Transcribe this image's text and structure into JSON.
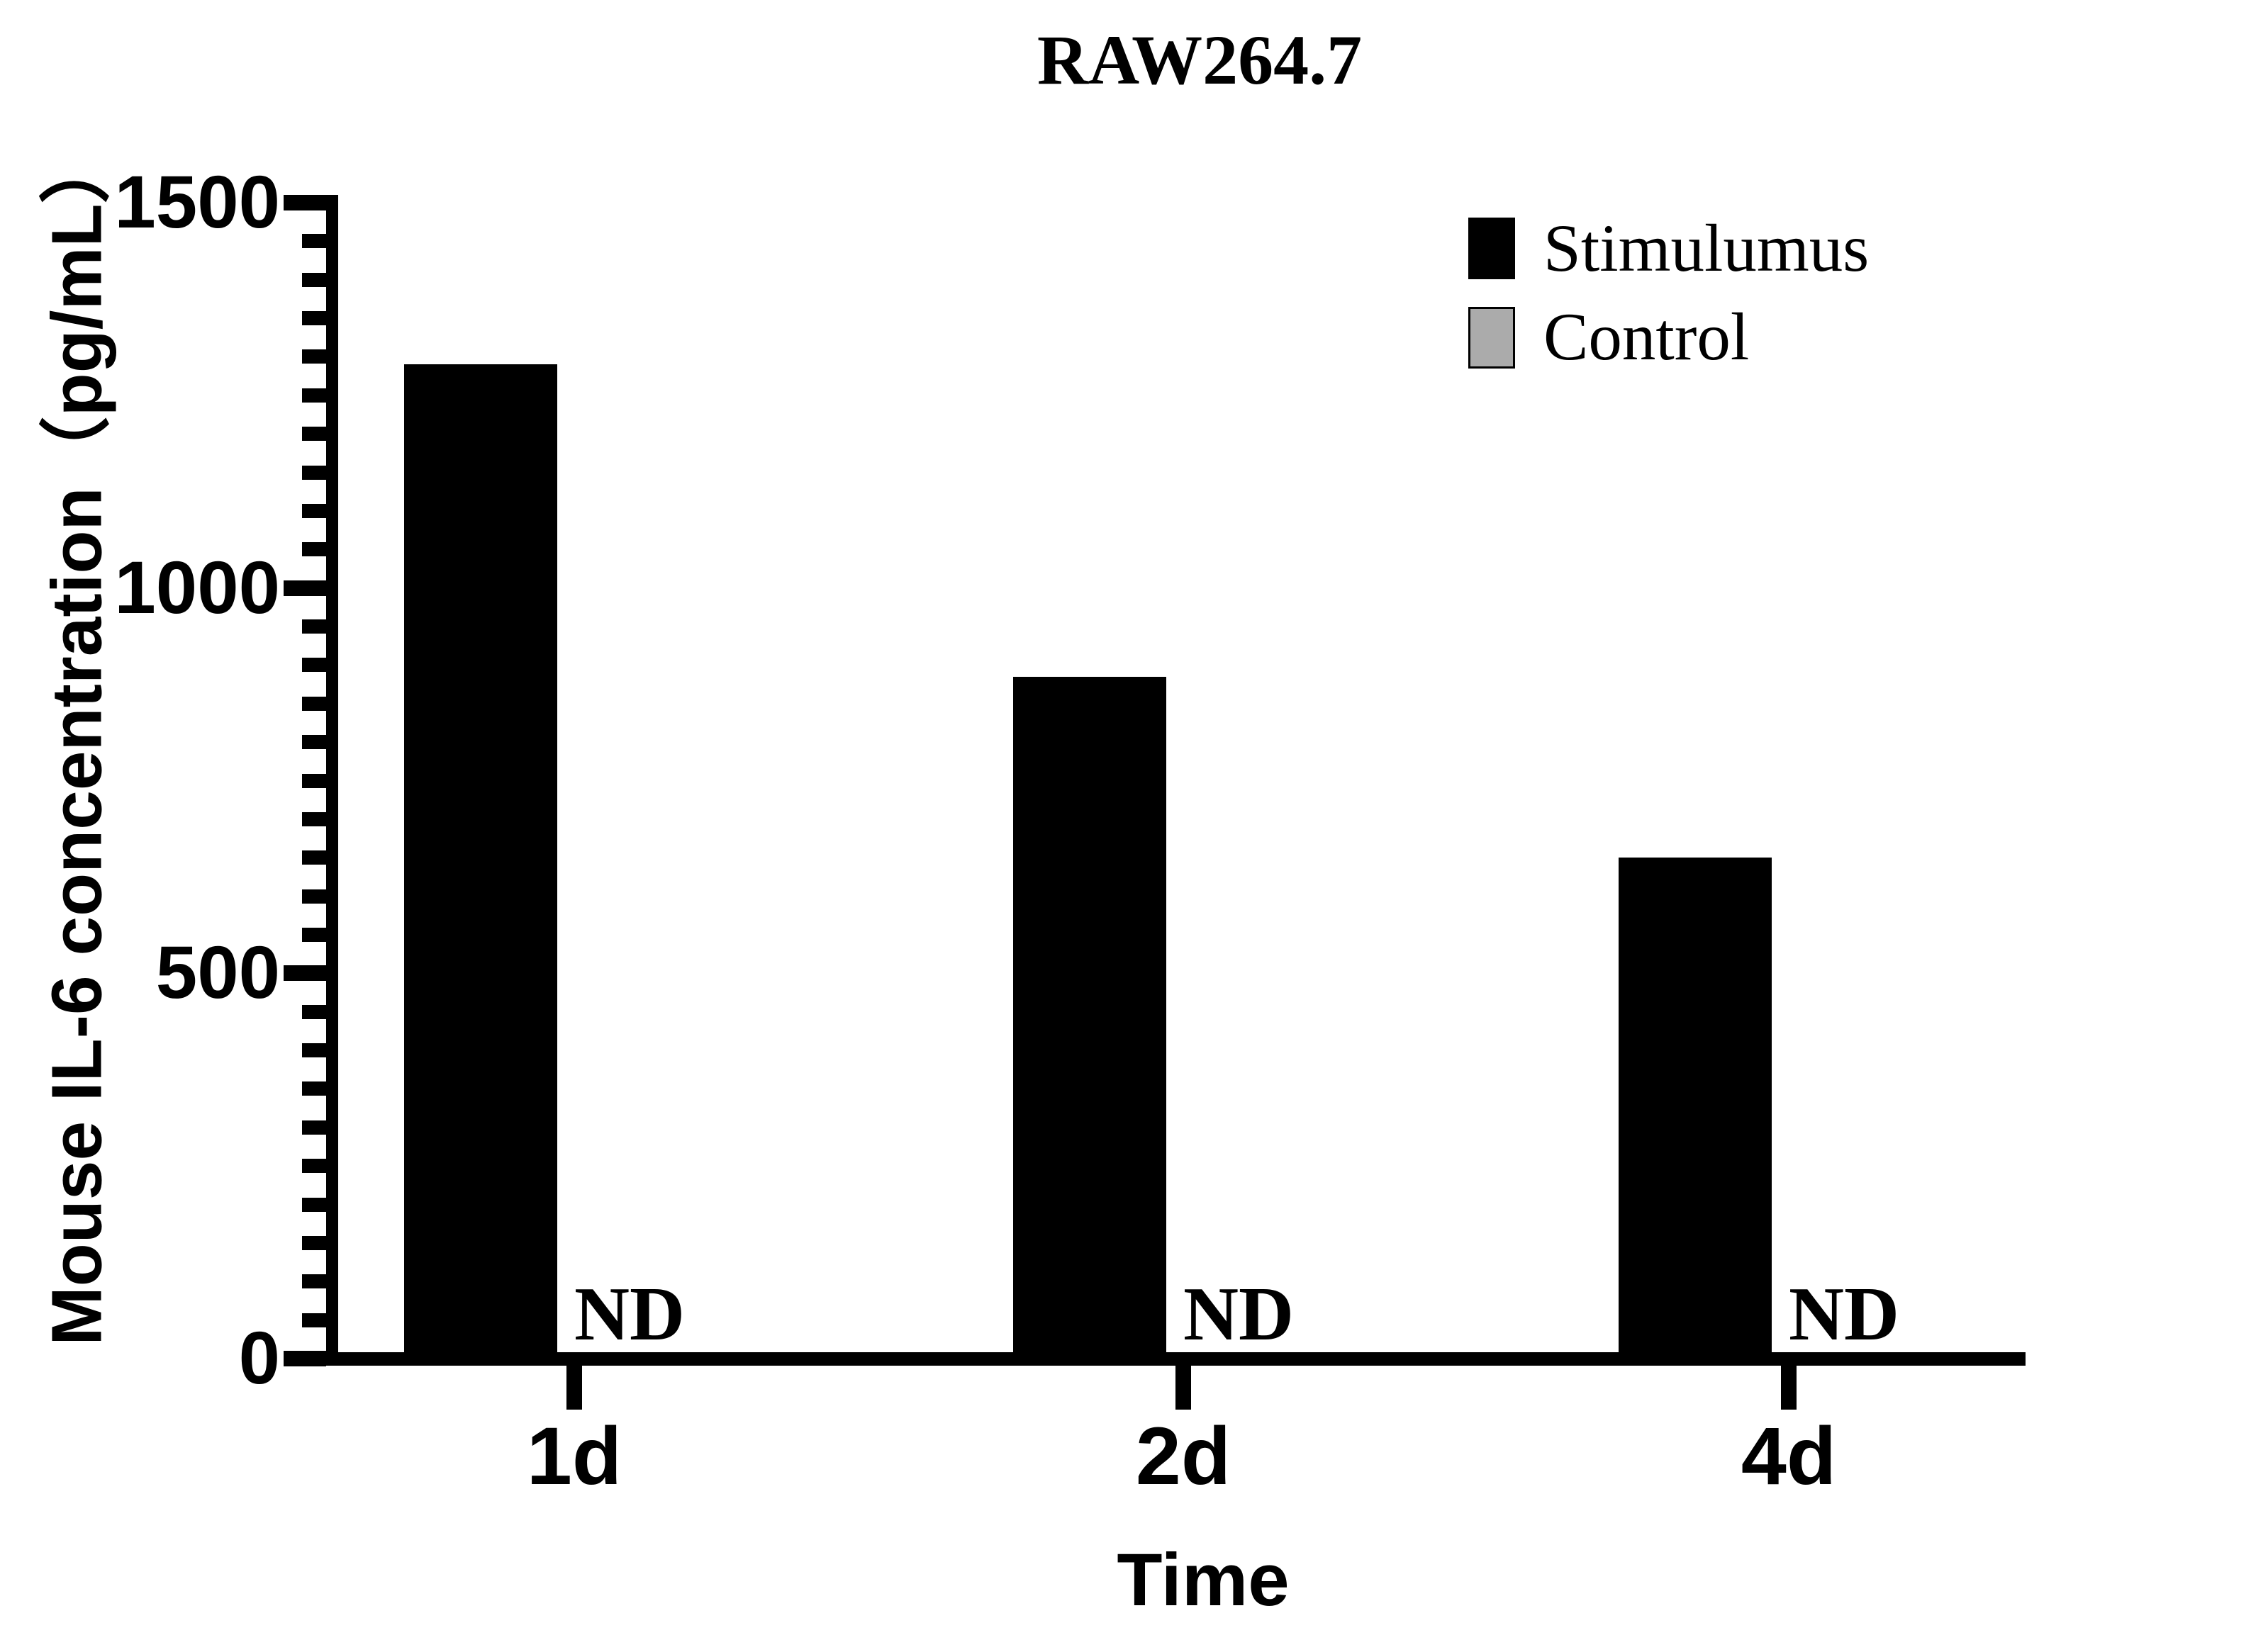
{
  "page": {
    "background": "#ffffff"
  },
  "chart_data": {
    "type": "bar",
    "title": "RAW264.7",
    "xlabel": "Time",
    "ylabel": "Mouse IL-6 concentration（pg/mL）",
    "categories": [
      "1d",
      "2d",
      "4d"
    ],
    "series": [
      {
        "name": "Stimulumus",
        "color": "#000000",
        "values": [
          1290,
          885,
          650
        ]
      },
      {
        "name": "Control",
        "color": "#ababab",
        "values": [
          "ND",
          "ND",
          "ND"
        ]
      }
    ],
    "ylim": [
      0,
      1500
    ],
    "yticks": [
      0,
      500,
      1000,
      1500
    ],
    "minor_tick_step": 50,
    "grid": false,
    "legend_position": "top-right",
    "bar_color": "#000000",
    "control_color": "#ababab"
  }
}
